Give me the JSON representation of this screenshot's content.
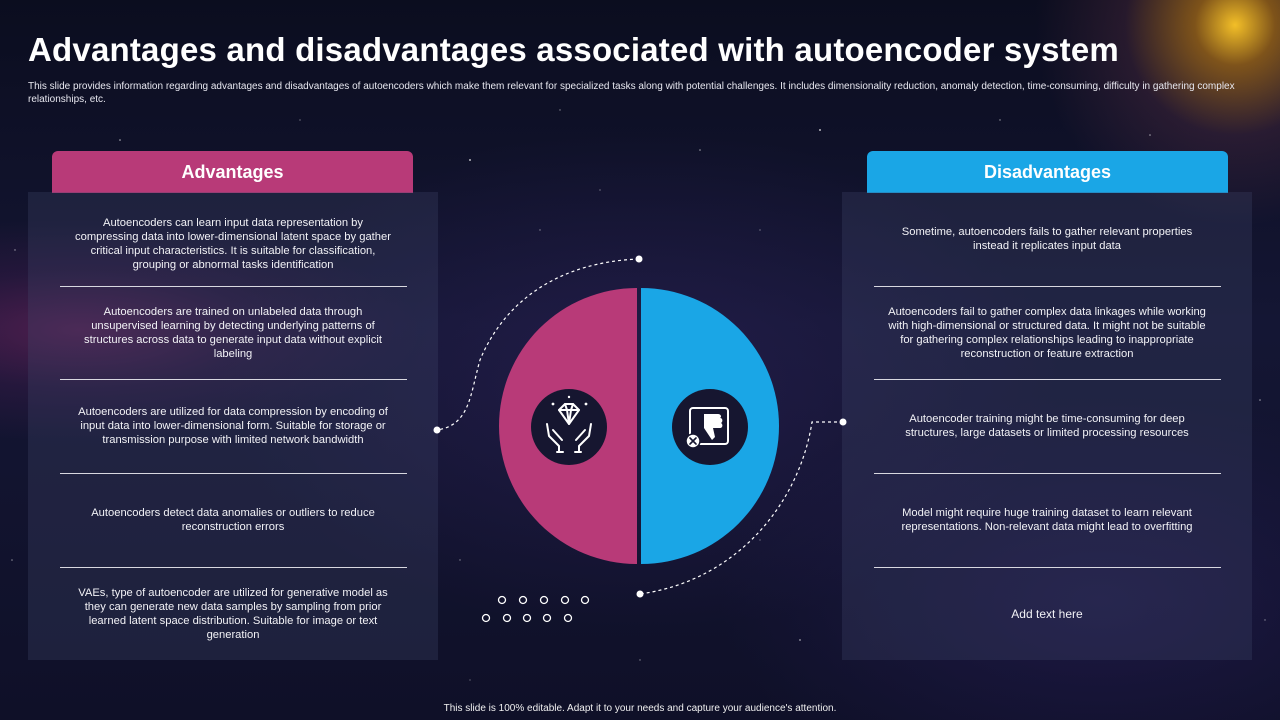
{
  "title": "Advantages and disadvantages associated with autoencoder system",
  "subtitle": "This slide provides information regarding advantages and disadvantages of autoencoders which make them relevant for specialized tasks along with potential challenges. It includes dimensionality reduction, anomaly detection, time-consuming, difficulty in gathering complex relationships, etc.",
  "advantages": {
    "header": "Advantages",
    "items": [
      "Autoencoders can learn input data representation by compressing data into lower-dimensional latent space by gather critical input characteristics. It is suitable for classification, grouping or abnormal tasks identification",
      "Autoencoders are trained on unlabeled data through unsupervised learning by detecting underlying patterns of structures across data to generate input data without explicit labeling",
      "Autoencoders are utilized for data compression by encoding of input data into lower-dimensional form. Suitable for storage or transmission purpose with limited network bandwidth",
      "Autoencoders detect data anomalies or outliers to reduce reconstruction errors",
      "VAEs, type of autoencoder are utilized for generative model as they can generate new data samples by sampling from prior learned latent space distribution. Suitable for image or text generation"
    ]
  },
  "disadvantages": {
    "header": "Disadvantages",
    "items": [
      "Sometime, autoencoders fails to gather relevant properties instead it replicates input data",
      "Autoencoders fail to gather complex data linkages while working with high-dimensional or structured data. It might not be suitable for gathering complex relationships leading to inappropriate reconstruction or feature extraction",
      "Autoencoder training might be time-consuming for deep structures, large datasets or limited processing resources",
      "Model might require huge training dataset to learn relevant representations. Non-relevant data might lead to overfitting",
      "Add text here"
    ]
  },
  "colors": {
    "advantages": "#b83a78",
    "disadvantages": "#1aa6e6",
    "icon_circle": "#161630"
  },
  "icons": {
    "advantages": "diamond-hands-icon",
    "disadvantages": "thumbs-down-icon"
  },
  "footer": "This slide is 100% editable. Adapt it to your needs and capture your audience's attention."
}
